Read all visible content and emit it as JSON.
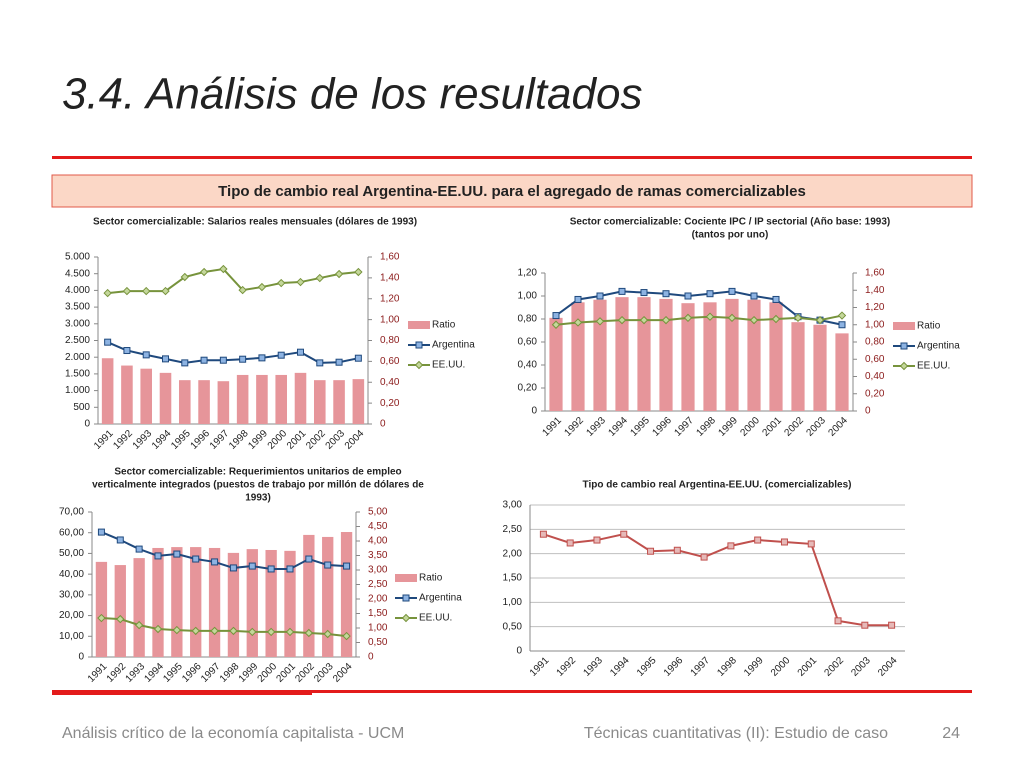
{
  "slide": {
    "title": "3.4.  Análisis de los resultados",
    "banner": "Tipo de cambio real Argentina-EE.UU. para el agregado de ramas comercializables",
    "footer_left": "Análisis crítico de la economía capitalista - UCM",
    "footer_center": "Técnicas cuantitativas (II): Estudio de caso",
    "page_number": "24"
  },
  "chart_data": [
    {
      "type": "combo",
      "title": [
        "Sector comercializable: Salarios reales mensuales (dólares de 1993)"
      ],
      "categories": [
        "1991",
        "1992",
        "1993",
        "1994",
        "1995",
        "1996",
        "1997",
        "1998",
        "1999",
        "2000",
        "2001",
        "2002",
        "2003",
        "2004"
      ],
      "series": [
        {
          "name": "Ratio",
          "type": "bar",
          "axis": "y2",
          "color": "#e6959a",
          "values": [
            0.63,
            0.56,
            0.53,
            0.49,
            0.42,
            0.42,
            0.41,
            0.47,
            0.47,
            0.47,
            0.49,
            0.42,
            0.42,
            0.43
          ]
        },
        {
          "name": "Argentina",
          "type": "line",
          "marker": "square",
          "color": "#1f497d",
          "values": [
            2450,
            2200,
            2070,
            1950,
            1830,
            1910,
            1910,
            1940,
            1980,
            2060,
            2150,
            1830,
            1850,
            1970
          ]
        },
        {
          "name": "EE.UU.",
          "type": "line",
          "marker": "diamond",
          "color": "#77933c",
          "values": [
            3920,
            3980,
            3980,
            3980,
            4400,
            4550,
            4640,
            4010,
            4100,
            4220,
            4250,
            4370,
            4490,
            4550
          ]
        }
      ],
      "ylim": [
        0,
        5000
      ],
      "yticks": [
        0,
        500,
        {
          "value": 1000,
          "label": "1.000"
        },
        {
          "value": 1500,
          "label": "1.500"
        },
        {
          "value": 2000,
          "label": "2.000"
        },
        {
          "value": 2500,
          "label": "2.500"
        },
        {
          "value": 3000,
          "label": "3.000"
        },
        {
          "value": 3500,
          "label": "3.500"
        },
        {
          "value": 4000,
          "label": "4.000"
        },
        {
          "value": 4500,
          "label": "4.500"
        },
        {
          "value": 5000,
          "label": "5.000"
        }
      ],
      "y2lim": [
        0,
        1.6
      ],
      "y2ticks": [
        0,
        {
          "value": 0.2,
          "label": "0,20"
        },
        {
          "value": 0.4,
          "label": "0,40"
        },
        {
          "value": 0.6,
          "label": "0,60"
        },
        {
          "value": 0.8,
          "label": "0,80"
        },
        {
          "value": 1.0,
          "label": "1,00"
        },
        {
          "value": 1.2,
          "label": "1,20"
        },
        {
          "value": 1.4,
          "label": "1,40"
        },
        {
          "value": 1.6,
          "label": "1,60"
        }
      ],
      "grid": false,
      "legend": "right"
    },
    {
      "type": "combo",
      "title": [
        "Sector comercializable: Cociente IPC / IP sectorial (Año base: 1993)",
        "(tantos por uno)"
      ],
      "categories": [
        "1991",
        "1992",
        "1993",
        "1994",
        "1995",
        "1996",
        "1997",
        "1998",
        "1999",
        "2000",
        "2001",
        "2002",
        "2003",
        "2004"
      ],
      "series": [
        {
          "name": "Ratio",
          "type": "bar",
          "axis": "y2",
          "color": "#e6959a",
          "values": [
            1.08,
            1.26,
            1.29,
            1.32,
            1.32,
            1.3,
            1.25,
            1.26,
            1.3,
            1.29,
            1.26,
            1.03,
            1.0,
            0.9
          ]
        },
        {
          "name": "Argentina",
          "type": "line",
          "marker": "square",
          "color": "#1f497d",
          "values": [
            0.83,
            0.97,
            1.0,
            1.04,
            1.03,
            1.02,
            1.0,
            1.02,
            1.04,
            1.0,
            0.97,
            0.82,
            0.79,
            0.75
          ]
        },
        {
          "name": "EE.UU.",
          "type": "line",
          "marker": "diamond",
          "color": "#77933c",
          "values": [
            0.75,
            0.77,
            0.78,
            0.79,
            0.79,
            0.79,
            0.81,
            0.82,
            0.81,
            0.79,
            0.8,
            0.81,
            0.79,
            0.83
          ]
        }
      ],
      "ylim": [
        0,
        1.2
      ],
      "yticks": [
        0,
        {
          "value": 0.2,
          "label": "0,20"
        },
        {
          "value": 0.4,
          "label": "0,40"
        },
        {
          "value": 0.6,
          "label": "0,60"
        },
        {
          "value": 0.8,
          "label": "0,80"
        },
        {
          "value": 1.0,
          "label": "1,00"
        },
        {
          "value": 1.2,
          "label": "1,20"
        }
      ],
      "y2lim": [
        0,
        1.6
      ],
      "y2ticks": [
        0,
        {
          "value": 0.2,
          "label": "0,20"
        },
        {
          "value": 0.4,
          "label": "0,40"
        },
        {
          "value": 0.6,
          "label": "0,60"
        },
        {
          "value": 0.8,
          "label": "0,80"
        },
        {
          "value": 1.0,
          "label": "1,00"
        },
        {
          "value": 1.2,
          "label": "1,20"
        },
        {
          "value": 1.4,
          "label": "1,40"
        },
        {
          "value": 1.6,
          "label": "1,60"
        }
      ],
      "grid": false,
      "legend": "right"
    },
    {
      "type": "combo",
      "title": [
        "Sector comercializable: Requerimientos unitarios de empleo",
        "verticalmente integrados (puestos de trabajo por millón de dólares de",
        "1993)"
      ],
      "categories": [
        "1991",
        "1992",
        "1993",
        "1994",
        "1995",
        "1996",
        "1997",
        "1998",
        "1999",
        "2000",
        "2001",
        "2002",
        "2003",
        "2004"
      ],
      "series": [
        {
          "name": "Ratio",
          "type": "bar",
          "axis": "y2",
          "color": "#e6959a",
          "values": [
            3.28,
            3.17,
            3.41,
            3.76,
            3.79,
            3.79,
            3.76,
            3.59,
            3.72,
            3.69,
            3.66,
            4.21,
            4.14,
            4.31
          ]
        },
        {
          "name": "Argentina",
          "type": "line",
          "marker": "square",
          "color": "#1f497d",
          "values": [
            60.3,
            56.5,
            52.1,
            48.8,
            49.7,
            47.3,
            45.9,
            43.0,
            43.9,
            42.5,
            42.5,
            47.3,
            44.4,
            43.9
          ]
        },
        {
          "name": "EE.UU.",
          "type": "line",
          "marker": "diamond",
          "color": "#77933c",
          "values": [
            18.8,
            18.3,
            15.4,
            13.5,
            13.0,
            12.6,
            12.6,
            12.6,
            12.1,
            12.1,
            12.1,
            11.6,
            11.1,
            10.1
          ]
        }
      ],
      "ylim": [
        0,
        70
      ],
      "yticks": [
        0,
        {
          "value": 10,
          "label": "10,00"
        },
        {
          "value": 20,
          "label": "20,00"
        },
        {
          "value": 30,
          "label": "30,00"
        },
        {
          "value": 40,
          "label": "40,00"
        },
        {
          "value": 50,
          "label": "50,00"
        },
        {
          "value": 60,
          "label": "60,00"
        },
        {
          "value": 70,
          "label": "70,00"
        }
      ],
      "y2lim": [
        0,
        5
      ],
      "y2ticks": [
        0,
        {
          "value": 0.5,
          "label": "0,50"
        },
        {
          "value": 1.0,
          "label": "1,00"
        },
        {
          "value": 1.5,
          "label": "1,50"
        },
        {
          "value": 2.0,
          "label": "2,00"
        },
        {
          "value": 2.5,
          "label": "2,50"
        },
        {
          "value": 3.0,
          "label": "3,00"
        },
        {
          "value": 3.5,
          "label": "3,50"
        },
        {
          "value": 4.0,
          "label": "4,00"
        },
        {
          "value": 4.5,
          "label": "4,50"
        },
        {
          "value": 5.0,
          "label": "5,00"
        }
      ],
      "grid": false,
      "legend": "right"
    },
    {
      "type": "line",
      "title": [
        "Tipo de cambio real Argentina-EE.UU. (comercializables)"
      ],
      "categories": [
        "1991",
        "1992",
        "1993",
        "1994",
        "1995",
        "1996",
        "1997",
        "1998",
        "1999",
        "2000",
        "2001",
        "2002",
        "2003",
        "2004"
      ],
      "series": [
        {
          "type": "line",
          "marker": "square",
          "color": "#c0504d",
          "values": [
            2.4,
            2.22,
            2.28,
            2.4,
            2.05,
            2.07,
            1.93,
            2.16,
            2.28,
            2.24,
            2.2,
            0.62,
            0.53,
            0.53
          ]
        }
      ],
      "ylim": [
        0,
        3
      ],
      "yticks": [
        0,
        {
          "value": 0.5,
          "label": "0,50"
        },
        {
          "value": 1.0,
          "label": "1,00"
        },
        {
          "value": 1.5,
          "label": "1,50"
        },
        {
          "value": 2.0,
          "label": "2,00"
        },
        {
          "value": 2.5,
          "label": "2,50"
        },
        {
          "value": 3.0,
          "label": "3,00"
        }
      ],
      "grid": true
    }
  ]
}
